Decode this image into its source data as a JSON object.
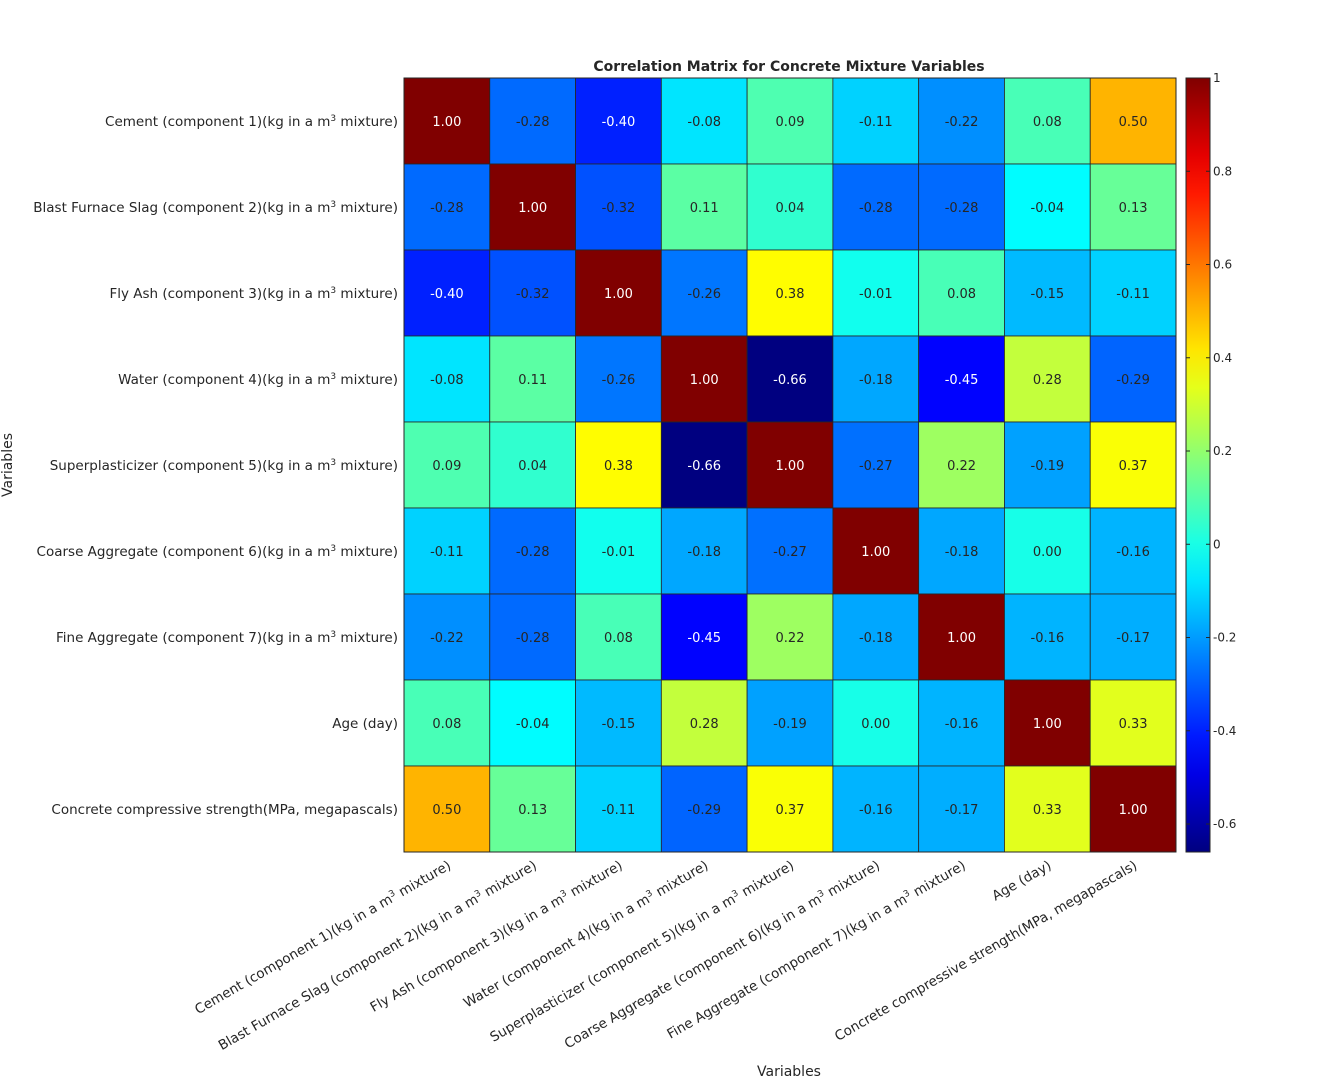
{
  "chart_data": {
    "type": "heatmap",
    "title": "Correlation Matrix for Concrete Mixture Variables",
    "xlabel": "Variables",
    "ylabel": "Variables",
    "unit_superscript": "3",
    "labels": [
      {
        "pre": "Cement (component 1)(kg in a m",
        "post": " mixture)"
      },
      {
        "pre": "Blast Furnace Slag (component 2)(kg in a m",
        "post": " mixture)"
      },
      {
        "pre": "Fly Ash (component 3)(kg in a m",
        "post": " mixture)"
      },
      {
        "pre": "Water  (component 4)(kg in a m",
        "post": " mixture)"
      },
      {
        "pre": "Superplasticizer (component 5)(kg in a m",
        "post": " mixture)"
      },
      {
        "pre": "Coarse Aggregate  (component 6)(kg in a m",
        "post": " mixture)"
      },
      {
        "pre": "Fine Aggregate (component 7)(kg in a m",
        "post": " mixture)"
      },
      {
        "pre": "Age (day)",
        "post": ""
      },
      {
        "pre": "Concrete compressive strength(MPa, megapascals)",
        "post": ""
      }
    ],
    "matrix": [
      [
        1.0,
        -0.28,
        -0.4,
        -0.08,
        0.09,
        -0.11,
        -0.22,
        0.08,
        0.5
      ],
      [
        -0.28,
        1.0,
        -0.32,
        0.11,
        0.04,
        -0.28,
        -0.28,
        -0.04,
        0.13
      ],
      [
        -0.4,
        -0.32,
        1.0,
        -0.26,
        0.38,
        -0.01,
        0.08,
        -0.15,
        -0.11
      ],
      [
        -0.08,
        0.11,
        -0.26,
        1.0,
        -0.66,
        -0.18,
        -0.45,
        0.28,
        -0.29
      ],
      [
        0.09,
        0.04,
        0.38,
        -0.66,
        1.0,
        -0.27,
        0.22,
        -0.19,
        0.37
      ],
      [
        -0.11,
        -0.28,
        -0.01,
        -0.18,
        -0.27,
        1.0,
        -0.18,
        -0.0,
        -0.16
      ],
      [
        -0.22,
        -0.28,
        0.08,
        -0.45,
        0.22,
        -0.18,
        1.0,
        -0.16,
        -0.17
      ],
      [
        0.08,
        -0.04,
        -0.15,
        0.28,
        -0.19,
        -0.0,
        -0.16,
        1.0,
        0.33
      ],
      [
        0.5,
        0.13,
        -0.11,
        -0.29,
        0.37,
        -0.16,
        -0.17,
        0.33,
        1.0
      ]
    ],
    "value_format_decimals": 2,
    "colorbar": {
      "colormap": "jet",
      "range": [
        -0.66,
        1.0
      ],
      "ticks": [
        1,
        0.8,
        0.6,
        0.4,
        0.2,
        0,
        -0.2,
        -0.4,
        -0.6
      ]
    }
  }
}
